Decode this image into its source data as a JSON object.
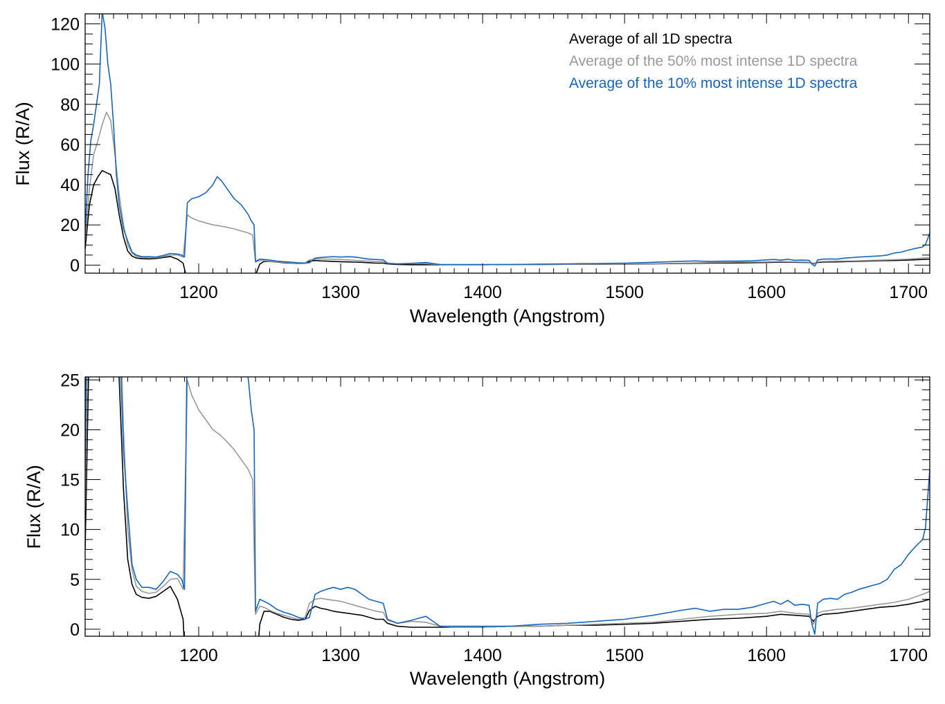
{
  "colors": {
    "all": "#000000",
    "top50": "#999999",
    "top10": "#1565c0",
    "axes": "#000000"
  },
  "chart_data": [
    {
      "type": "line",
      "xlabel": "Wavelength (Angstrom)",
      "ylabel": "Flux (R/A)",
      "xlim": [
        1120,
        1715
      ],
      "ylim": [
        -4,
        125
      ],
      "xticks": [
        1200,
        1300,
        1400,
        1500,
        1600,
        1700
      ],
      "yticks": [
        0,
        20,
        40,
        60,
        80,
        100,
        120
      ],
      "xminor": 10,
      "yminor": 5,
      "grid": false,
      "legend_position": "top-right",
      "legend": [
        {
          "label": "Average of all 1D spectra",
          "color_key": "all"
        },
        {
          "label": "Average of the 50% most intense 1D spectra",
          "color_key": "top50"
        },
        {
          "label": "Average of the 10% most intense 1D spectra",
          "color_key": "top10"
        }
      ]
    },
    {
      "type": "line",
      "xlabel": "Wavelength (Angstrom)",
      "ylabel": "Flux (R/A)",
      "xlim": [
        1120,
        1715
      ],
      "ylim": [
        -0.7,
        25.3
      ],
      "xticks": [
        1200,
        1300,
        1400,
        1500,
        1600,
        1700
      ],
      "yticks": [
        0,
        5,
        10,
        15,
        20,
        25
      ],
      "xminor": 10,
      "yminor": 1,
      "grid": false
    }
  ],
  "series": [
    {
      "key": "all",
      "x": [
        1120,
        1123,
        1126,
        1129,
        1132,
        1135,
        1138,
        1141,
        1144,
        1147,
        1150,
        1153,
        1156,
        1160,
        1165,
        1170,
        1175,
        1180,
        1185,
        1189,
        1191,
        1240,
        1243,
        1246,
        1250,
        1255,
        1260,
        1265,
        1270,
        1275,
        1278,
        1282,
        1286,
        1290,
        1295,
        1300,
        1305,
        1310,
        1315,
        1320,
        1325,
        1330,
        1333,
        1340,
        1350,
        1360,
        1370,
        1380,
        1400,
        1420,
        1440,
        1460,
        1480,
        1500,
        1520,
        1540,
        1560,
        1580,
        1600,
        1610,
        1620,
        1630,
        1633,
        1636,
        1640,
        1650,
        1660,
        1670,
        1680,
        1690,
        1700,
        1710,
        1715
      ],
      "y": [
        8,
        30,
        40,
        44,
        47,
        46,
        45,
        38,
        25,
        14,
        7,
        4.5,
        3.5,
        3.2,
        3.1,
        3.3,
        3.8,
        4.3,
        3.0,
        1.0,
        -5,
        -5,
        0.5,
        1.8,
        1.8,
        1.5,
        1.2,
        1.0,
        0.9,
        1.0,
        1.9,
        2.3,
        2.1,
        2.0,
        1.8,
        1.7,
        1.6,
        1.5,
        1.4,
        1.2,
        1.0,
        1.0,
        0.6,
        0.3,
        0.2,
        0.2,
        0.2,
        0.2,
        0.2,
        0.3,
        0.3,
        0.4,
        0.4,
        0.5,
        0.6,
        0.8,
        1.0,
        1.1,
        1.3,
        1.5,
        1.4,
        1.3,
        0.8,
        1.3,
        1.5,
        1.6,
        1.8,
        2.0,
        2.2,
        2.3,
        2.5,
        2.8,
        3.0
      ]
    },
    {
      "key": "top50",
      "x": [
        1120,
        1123,
        1126,
        1129,
        1132,
        1135,
        1138,
        1141,
        1144,
        1147,
        1150,
        1153,
        1156,
        1160,
        1165,
        1170,
        1175,
        1180,
        1185,
        1189,
        1192,
        1195,
        1200,
        1205,
        1210,
        1215,
        1220,
        1225,
        1230,
        1235,
        1238,
        1240,
        1243,
        1246,
        1250,
        1255,
        1260,
        1265,
        1270,
        1275,
        1278,
        1282,
        1286,
        1290,
        1295,
        1300,
        1305,
        1310,
        1315,
        1320,
        1325,
        1330,
        1333,
        1340,
        1350,
        1360,
        1370,
        1380,
        1400,
        1420,
        1440,
        1460,
        1480,
        1500,
        1520,
        1540,
        1560,
        1580,
        1600,
        1610,
        1620,
        1630,
        1633,
        1636,
        1640,
        1650,
        1660,
        1670,
        1680,
        1690,
        1700,
        1710,
        1715
      ],
      "y": [
        12,
        38,
        55,
        62,
        70,
        76,
        72,
        55,
        35,
        20,
        10,
        6,
        4.3,
        3.8,
        3.6,
        3.7,
        4.3,
        5.0,
        5.1,
        4.0,
        25,
        23.5,
        22,
        21,
        20,
        19.5,
        18.8,
        18,
        17,
        16,
        15,
        1.5,
        2.3,
        2.2,
        1.9,
        1.6,
        1.4,
        1.2,
        1.0,
        1.2,
        2.6,
        3.0,
        3.1,
        3.0,
        2.9,
        2.8,
        2.6,
        2.4,
        2.2,
        2.0,
        1.8,
        1.7,
        0.9,
        0.6,
        0.8,
        0.7,
        0.3,
        0.2,
        0.2,
        0.3,
        0.3,
        0.4,
        0.5,
        0.6,
        0.7,
        1.0,
        1.3,
        1.5,
        1.6,
        1.8,
        1.6,
        1.5,
        0.5,
        1.6,
        1.8,
        2.0,
        2.1,
        2.3,
        2.5,
        2.7,
        3.0,
        3.5,
        3.8
      ]
    },
    {
      "key": "top10",
      "x": [
        1120,
        1122,
        1124,
        1126,
        1128,
        1130,
        1132,
        1134,
        1136,
        1138,
        1140,
        1142,
        1144,
        1147,
        1150,
        1153,
        1156,
        1160,
        1165,
        1170,
        1175,
        1180,
        1185,
        1188,
        1190,
        1192,
        1195,
        1200,
        1205,
        1210,
        1213,
        1216,
        1220,
        1225,
        1230,
        1235,
        1237,
        1239,
        1240,
        1243,
        1246,
        1250,
        1255,
        1260,
        1265,
        1270,
        1275,
        1278,
        1282,
        1286,
        1290,
        1295,
        1300,
        1305,
        1310,
        1315,
        1320,
        1325,
        1330,
        1333,
        1340,
        1350,
        1355,
        1360,
        1365,
        1370,
        1380,
        1390,
        1400,
        1420,
        1440,
        1460,
        1480,
        1500,
        1520,
        1540,
        1550,
        1560,
        1570,
        1580,
        1590,
        1600,
        1605,
        1610,
        1615,
        1620,
        1625,
        1630,
        1632,
        1634,
        1636,
        1640,
        1645,
        1650,
        1655,
        1660,
        1665,
        1670,
        1675,
        1680,
        1685,
        1690,
        1695,
        1700,
        1705,
        1710,
        1712,
        1715
      ],
      "y": [
        16,
        45,
        62,
        70,
        80,
        90,
        126,
        118,
        100,
        90,
        70,
        45,
        30,
        18,
        12,
        6.5,
        5.0,
        4.2,
        4.2,
        4.0,
        4.8,
        5.8,
        5.5,
        5.0,
        4.0,
        31,
        33,
        34,
        36,
        40,
        44,
        42,
        38,
        33,
        30,
        25,
        22,
        20,
        1.8,
        3.0,
        2.8,
        2.5,
        2.0,
        1.7,
        1.5,
        1.2,
        1.0,
        1.2,
        3.5,
        3.8,
        4.0,
        4.2,
        4.0,
        4.2,
        4.0,
        3.5,
        3.0,
        2.8,
        2.6,
        1.0,
        0.6,
        0.9,
        1.1,
        1.3,
        0.8,
        0.3,
        0.3,
        0.3,
        0.3,
        0.3,
        0.5,
        0.6,
        0.8,
        1.0,
        1.4,
        1.9,
        2.1,
        1.8,
        2.0,
        2.0,
        2.2,
        2.6,
        2.8,
        2.5,
        2.9,
        2.4,
        2.5,
        2.4,
        0.5,
        -0.5,
        2.6,
        3.0,
        3.1,
        3.0,
        3.5,
        3.7,
        4.0,
        4.2,
        4.4,
        4.6,
        5.0,
        6.0,
        6.5,
        7.5,
        8.3,
        9.0,
        10.2,
        16.0
      ]
    }
  ]
}
